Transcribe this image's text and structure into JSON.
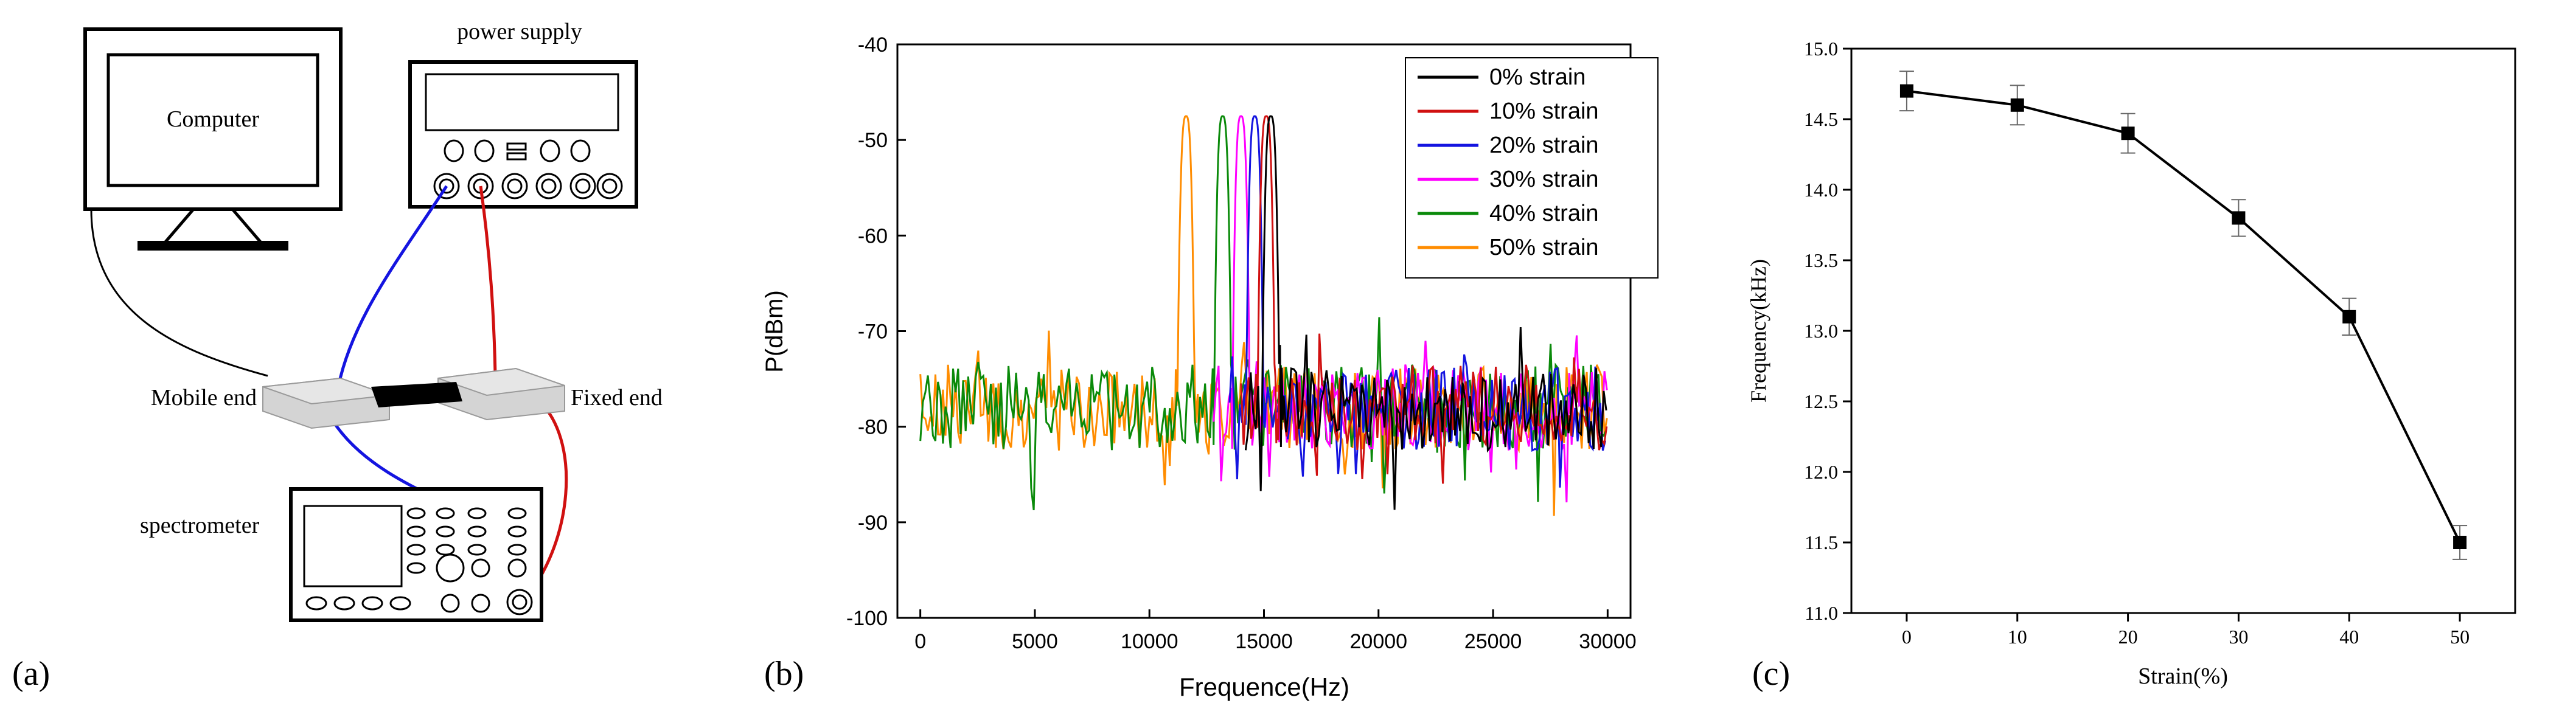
{
  "colors": {
    "black": "#000000",
    "red": "#d01010",
    "blue": "#1414e0",
    "magenta": "#ff00ff",
    "green": "#0a8a0a",
    "orange": "#ff8c00",
    "device_gray": "#d4d4d4"
  },
  "panel_a": {
    "label": "(a)",
    "computer_label": "Computer",
    "power_supply_label": "power supply",
    "mobile_end_label": "Mobile end",
    "fixed_end_label": "Fixed end",
    "spectrometer_label": "spectrometer"
  },
  "chart_data": [
    {
      "panel": "(b)",
      "type": "line",
      "title": "",
      "xlabel": "Frequence(Hz)",
      "ylabel": "P(dBm)",
      "xlim": [
        -1000,
        31000
      ],
      "ylim": [
        -100,
        -40
      ],
      "xticks": [
        0,
        5000,
        10000,
        15000,
        20000,
        25000,
        30000
      ],
      "yticks": [
        -100,
        -90,
        -80,
        -70,
        -60,
        -50,
        -40
      ],
      "legend_position": "top-right",
      "noise_floor_dBm": -78,
      "series": [
        {
          "name": "0% strain",
          "color": "#000000",
          "peak_x": 15300,
          "peak_y": -47.5,
          "noise_start": 14200
        },
        {
          "name": "10% strain",
          "color": "#d01010",
          "peak_x": 15100,
          "peak_y": -47.5,
          "noise_start": 14000
        },
        {
          "name": "20% strain",
          "color": "#1414e0",
          "peak_x": 14600,
          "peak_y": -47.5,
          "noise_start": 13500
        },
        {
          "name": "30% strain",
          "color": "#ff00ff",
          "peak_x": 14000,
          "peak_y": -47.5,
          "noise_start": 12800
        },
        {
          "name": "40% strain",
          "color": "#0a8a0a",
          "peak_x": 13200,
          "peak_y": -47.5,
          "noise_start": 0
        },
        {
          "name": "50% strain",
          "color": "#ff8c00",
          "peak_x": 11600,
          "peak_y": -47.5,
          "noise_start": 0
        }
      ]
    },
    {
      "panel": "(c)",
      "type": "line",
      "title": "",
      "xlabel": "Strain(%)",
      "ylabel": "Frequency(kHz)",
      "xlim": [
        -5,
        55
      ],
      "ylim": [
        11.0,
        15.0
      ],
      "xticks": [
        0,
        10,
        20,
        30,
        40,
        50
      ],
      "yticks": [
        11.0,
        11.5,
        12.0,
        12.5,
        13.0,
        13.5,
        14.0,
        14.5,
        15.0
      ],
      "xtick_labels": [
        "0",
        "10",
        "20",
        "30",
        "40",
        "50"
      ],
      "ytick_labels": [
        "11.0",
        "11.5",
        "12.0",
        "12.5",
        "13.0",
        "13.5",
        "14.0",
        "14.5",
        "15.0"
      ],
      "x": [
        0,
        10,
        20,
        30,
        40,
        50
      ],
      "y": [
        14.7,
        14.6,
        14.4,
        13.8,
        13.1,
        11.5
      ],
      "error": [
        0.14,
        0.14,
        0.14,
        0.13,
        0.13,
        0.12
      ],
      "marker": "square"
    }
  ],
  "panel_b": {
    "label": "(b)"
  },
  "panel_c": {
    "label": "(c)"
  }
}
